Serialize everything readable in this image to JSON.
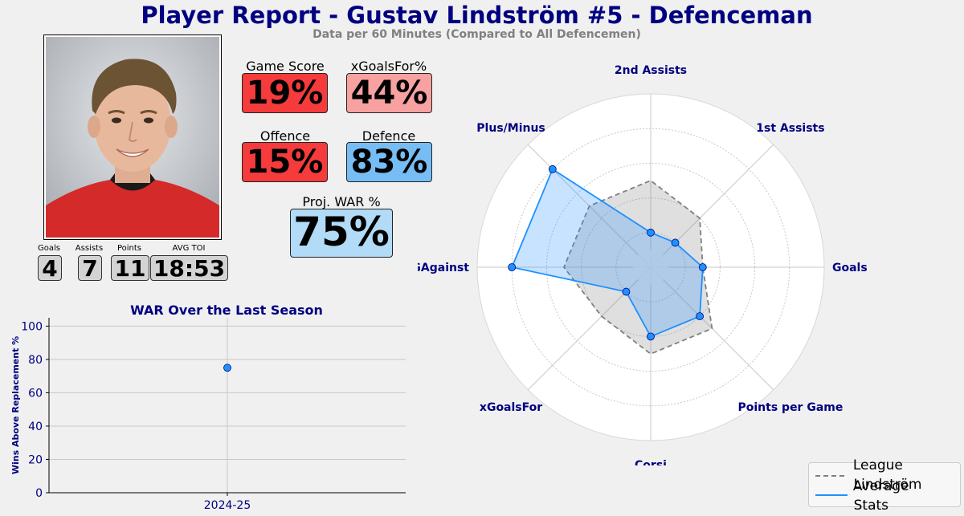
{
  "header": {
    "title": "Player Report - Gustav Lindström #5 - Defenceman",
    "subtitle": "Data per 60 Minutes (Compared to All Defencemen)"
  },
  "counting_stats": [
    {
      "label": "Goals",
      "value": "4"
    },
    {
      "label": "Assists",
      "value": "7"
    },
    {
      "label": "Points",
      "value": "11"
    },
    {
      "label": "AVG TOI",
      "value": "18:53"
    }
  ],
  "metrics": {
    "game_score": {
      "label": "Game Score",
      "value": "19%",
      "color": "#f53b3b"
    },
    "xgf_pct": {
      "label": "xGoalsFor%",
      "value": "44%",
      "color": "#f7a1a1"
    },
    "offence": {
      "label": "Offence",
      "value": "15%",
      "color": "#f53b3b"
    },
    "defence": {
      "label": "Defence",
      "value": "83%",
      "color": "#77bdf5"
    },
    "proj_war": {
      "label": "Proj. WAR %",
      "value": "75%",
      "color": "#b1dbf7"
    }
  },
  "chart_data": [
    {
      "type": "scatter",
      "title": "WAR Over the Last Season",
      "ylabel": "Wins Above Replacement %",
      "categories": [
        "2024-25"
      ],
      "values": [
        75
      ],
      "ylim": [
        0,
        105
      ],
      "yticks": [
        0,
        20,
        40,
        60,
        80,
        100
      ],
      "grid": true,
      "color": "#1e90ff"
    },
    {
      "type": "radar",
      "categories": [
        "Goals",
        "1st Assists",
        "2nd Assists",
        "Plus/Minus",
        "xGAgainst",
        "xGoalsFor",
        "Corsi",
        "Points per Game"
      ],
      "series": [
        {
          "name": "League Average",
          "values": [
            30,
            40,
            50,
            50,
            50,
            40,
            50,
            50
          ],
          "color": "#808080",
          "style": "dashed"
        },
        {
          "name": "Lindström Stats",
          "values": [
            30,
            20,
            20,
            80,
            80,
            20,
            40,
            40
          ],
          "color": "#1e90ff",
          "style": "solid"
        }
      ],
      "rlim": [
        0,
        100
      ],
      "legend": "bottom-right"
    }
  ]
}
